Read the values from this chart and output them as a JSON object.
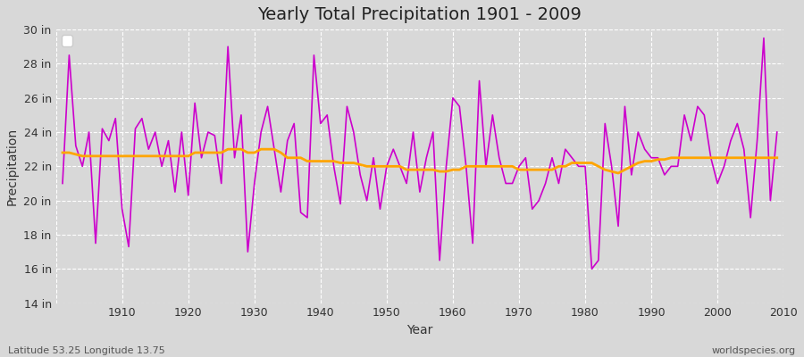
{
  "title": "Yearly Total Precipitation 1901 - 2009",
  "xlabel": "Year",
  "ylabel": "Precipitation",
  "subtitle_left": "Latitude 53.25 Longitude 13.75",
  "subtitle_right": "worldspecies.org",
  "line_color": "#cc00cc",
  "trend_color": "#FFA500",
  "bg_color": "#d8d8d8",
  "plot_bg_color": "#d8d8d8",
  "ylim": [
    14,
    30
  ],
  "yticks": [
    14,
    16,
    18,
    20,
    22,
    24,
    26,
    28,
    30
  ],
  "years": [
    1901,
    1902,
    1903,
    1904,
    1905,
    1906,
    1907,
    1908,
    1909,
    1910,
    1911,
    1912,
    1913,
    1914,
    1915,
    1916,
    1917,
    1918,
    1919,
    1920,
    1921,
    1922,
    1923,
    1924,
    1925,
    1926,
    1927,
    1928,
    1929,
    1930,
    1931,
    1932,
    1933,
    1934,
    1935,
    1936,
    1937,
    1938,
    1939,
    1940,
    1941,
    1942,
    1943,
    1944,
    1945,
    1946,
    1947,
    1948,
    1949,
    1950,
    1951,
    1952,
    1953,
    1954,
    1955,
    1956,
    1957,
    1958,
    1959,
    1960,
    1961,
    1962,
    1963,
    1964,
    1965,
    1966,
    1967,
    1968,
    1969,
    1970,
    1971,
    1972,
    1973,
    1974,
    1975,
    1976,
    1977,
    1978,
    1979,
    1980,
    1981,
    1982,
    1983,
    1984,
    1985,
    1986,
    1987,
    1988,
    1989,
    1990,
    1991,
    1992,
    1993,
    1994,
    1995,
    1996,
    1997,
    1998,
    1999,
    2000,
    2001,
    2002,
    2003,
    2004,
    2005,
    2006,
    2007,
    2008,
    2009
  ],
  "precip": [
    21.0,
    28.5,
    23.2,
    22.0,
    24.0,
    17.5,
    24.2,
    23.5,
    24.8,
    19.5,
    17.3,
    24.2,
    24.8,
    23.0,
    24.0,
    22.0,
    23.5,
    20.5,
    24.0,
    20.3,
    25.7,
    22.5,
    24.0,
    23.8,
    21.0,
    29.0,
    22.5,
    25.0,
    17.0,
    21.0,
    24.0,
    25.5,
    23.0,
    20.5,
    23.5,
    24.5,
    19.3,
    19.0,
    28.5,
    24.5,
    25.0,
    22.0,
    19.8,
    25.5,
    24.0,
    21.5,
    20.0,
    22.5,
    19.5,
    22.0,
    23.0,
    22.0,
    21.0,
    24.0,
    20.5,
    22.5,
    24.0,
    16.5,
    22.0,
    26.0,
    25.5,
    22.0,
    17.5,
    27.0,
    22.0,
    25.0,
    22.5,
    21.0,
    21.0,
    22.0,
    22.5,
    19.5,
    20.0,
    21.0,
    22.5,
    21.0,
    23.0,
    22.5,
    22.0,
    22.0,
    16.0,
    16.5,
    24.5,
    22.0,
    18.5,
    25.5,
    21.5,
    24.0,
    23.0,
    22.5,
    22.5,
    21.5,
    22.0,
    22.0,
    25.0,
    23.5,
    25.5,
    25.0,
    22.5,
    21.0,
    22.0,
    23.5,
    24.5,
    23.0,
    19.0,
    23.5,
    29.5,
    20.0,
    24.0
  ],
  "trend": [
    22.8,
    22.8,
    22.7,
    22.6,
    22.6,
    22.6,
    22.6,
    22.6,
    22.6,
    22.6,
    22.6,
    22.6,
    22.6,
    22.6,
    22.6,
    22.6,
    22.6,
    22.6,
    22.6,
    22.6,
    22.8,
    22.8,
    22.8,
    22.8,
    22.8,
    23.0,
    23.0,
    23.0,
    22.8,
    22.8,
    23.0,
    23.0,
    23.0,
    22.8,
    22.5,
    22.5,
    22.5,
    22.3,
    22.3,
    22.3,
    22.3,
    22.3,
    22.2,
    22.2,
    22.2,
    22.1,
    22.0,
    22.0,
    22.0,
    22.0,
    22.0,
    22.0,
    21.8,
    21.8,
    21.8,
    21.8,
    21.8,
    21.7,
    21.7,
    21.8,
    21.8,
    22.0,
    22.0,
    22.0,
    22.0,
    22.0,
    22.0,
    22.0,
    22.0,
    21.8,
    21.8,
    21.8,
    21.8,
    21.8,
    21.8,
    22.0,
    22.0,
    22.2,
    22.2,
    22.2,
    22.2,
    22.0,
    21.8,
    21.7,
    21.6,
    21.8,
    22.0,
    22.2,
    22.3,
    22.3,
    22.4,
    22.4,
    22.5,
    22.5,
    22.5,
    22.5,
    22.5,
    22.5,
    22.5,
    22.5,
    22.5,
    22.5,
    22.5,
    22.5,
    22.5,
    22.5,
    22.5,
    22.5,
    22.5
  ]
}
